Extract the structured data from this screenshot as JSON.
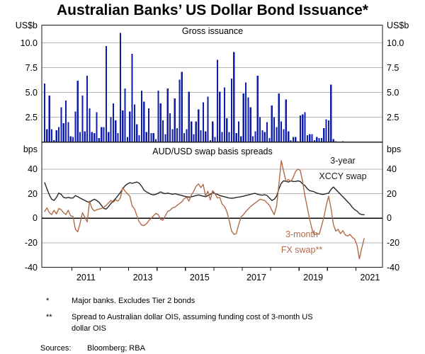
{
  "title": "Australian Banks’ US Dollar Bond Issuance*",
  "panels": {
    "top": {
      "label": "Gross issuance",
      "unit": "US$b",
      "yticks": [
        "10.0",
        "7.5",
        "5.0",
        "2.5"
      ]
    },
    "bottom": {
      "label": "AUD/USD swap basis spreads",
      "unit": "bps",
      "yticks": [
        "40",
        "20",
        "0",
        "-20",
        "-40"
      ],
      "series_labels": {
        "xccy": [
          "3-year",
          "XCCY swap"
        ],
        "fx": [
          "3-month",
          "FX swap**"
        ]
      }
    }
  },
  "x_axis": {
    "years": [
      "2011",
      "2013",
      "2015",
      "2017",
      "2019",
      "2021"
    ]
  },
  "footnotes": [
    {
      "symbol": "*",
      "text": "Major banks. Excludes Tier 2 bonds"
    },
    {
      "symbol": "**",
      "text": "Spread to Australian dollar OIS, assuming funding cost of 3-month US dollar OIS"
    }
  ],
  "sources": {
    "label": "Sources:",
    "value": "Bloomberg; RBA"
  },
  "colors": {
    "bar": "#0f1ea8",
    "xccy": "#262626",
    "fx": "#b26b48",
    "grid": "#b5b5b5",
    "axis": "#1a1a1a"
  },
  "chart_data": [
    {
      "type": "bar",
      "title": "Gross issuance",
      "ylabel": "US$b",
      "ylim": [
        0,
        11.8
      ],
      "yticks": [
        2.5,
        5.0,
        7.5,
        10.0
      ],
      "x_start": "2010-01",
      "frequency": "monthly",
      "values": [
        5.9,
        1.3,
        4.7,
        1.3,
        0.2,
        1.2,
        1.5,
        3.5,
        1.9,
        4.2,
        2.0,
        0.6,
        0.5,
        3.1,
        6.2,
        1.0,
        4.7,
        1.1,
        6.7,
        3.4,
        1.0,
        0.9,
        3.0,
        0.4,
        1.5,
        1.5,
        9.7,
        1.0,
        2.5,
        3.9,
        2.2,
        0.9,
        11.0,
        3.2,
        5.4,
        0.5,
        3.1,
        8.9,
        3.8,
        1.8,
        0.7,
        5.2,
        4.1,
        1.0,
        3.4,
        0.9,
        0.9,
        0.3,
        5.2,
        3.9,
        2.2,
        0.8,
        5.4,
        2.9,
        1.3,
        4.4,
        1.4,
        6.3,
        7.1,
        0.9,
        1.3,
        5.1,
        2.1,
        0.8,
        2.1,
        3.3,
        1.2,
        4.0,
        1.1,
        4.6,
        0.2,
        2.1,
        0.5,
        8.3,
        5.1,
        1.0,
        5.5,
        2.4,
        1.0,
        6.4,
        9.1,
        0.9,
        2.1,
        0.6,
        4.9,
        6.0,
        4.5,
        3.5,
        0.6,
        1.1,
        6.7,
        2.5,
        1.2,
        1.0,
        2.0,
        0.4,
        3.7,
        2.5,
        1.5,
        4.9,
        2.1,
        1.3,
        4.3,
        1.1,
        0.2,
        0.5,
        0.5,
        0.1,
        2.7,
        2.8,
        3.0,
        0.7,
        0.8,
        0.8,
        0.2,
        0.5,
        0.4,
        0.4,
        1.4,
        2.3,
        2.2,
        5.8,
        0.3,
        0.1,
        0,
        0,
        0.1,
        0,
        0,
        0,
        0,
        0,
        0,
        0,
        0
      ]
    },
    {
      "type": "line",
      "title": "AUD/USD swap basis spreads",
      "ylabel": "bps",
      "ylim": [
        -40,
        62
      ],
      "yticks": [
        -40,
        -20,
        0,
        20,
        40
      ],
      "x_start": "2010-01",
      "frequency": "monthly",
      "series": [
        {
          "name": "3-year XCCY swap",
          "color_key": "xccy",
          "values": [
            29,
            24,
            19,
            15.5,
            14.5,
            17,
            20.5,
            19.5,
            17,
            16.5,
            17,
            16.5,
            16.5,
            18.5,
            17.5,
            16.5,
            15.5,
            14.5,
            13.5,
            13,
            14.5,
            15.5,
            14.5,
            13,
            10.5,
            8,
            7.5,
            9.5,
            12,
            14,
            16,
            18.5,
            21,
            24,
            26.5,
            28,
            29,
            28.5,
            29,
            29.5,
            28.5,
            26,
            23,
            21.5,
            20.5,
            19.5,
            19,
            19.5,
            20.5,
            21.5,
            20.5,
            20,
            20.5,
            20,
            19.5,
            20,
            19.5,
            19,
            18.5,
            18,
            17.5,
            17.2,
            17.5,
            18,
            18.5,
            19,
            18.5,
            18,
            17.5,
            18.5,
            19.5,
            21,
            20,
            19.5,
            18.5,
            18,
            17.5,
            17,
            16.5,
            16.3,
            16.5,
            17,
            17.3,
            17.6,
            18,
            18.5,
            19,
            19.5,
            20,
            20.3,
            19.5,
            19,
            18.8,
            19.2,
            18.5,
            16.5,
            14.5,
            15.5,
            18,
            24,
            28.5,
            30.5,
            30,
            29.5,
            30.5,
            30,
            30,
            30.5,
            30,
            28,
            26.5,
            24,
            22.5,
            22,
            21.5,
            20.5,
            20,
            19.5,
            19.5,
            20,
            20.5,
            23.5,
            25.5,
            23.5,
            21.5,
            19.5,
            17.5,
            15.5,
            13.5,
            11.5,
            9,
            7,
            5.8,
            3.8,
            3,
            2.9
          ]
        },
        {
          "name": "3-month FX swap",
          "color_key": "fx",
          "values": [
            5.5,
            8.5,
            4.5,
            3,
            6.5,
            3.5,
            8,
            7,
            4.5,
            3,
            6.5,
            2,
            1.5,
            -9,
            -11,
            -4,
            4.5,
            1,
            -3,
            14,
            8,
            6,
            7,
            7.5,
            8,
            9,
            10.5,
            12.5,
            14.5,
            13,
            15,
            14,
            16.5,
            25,
            22,
            20,
            18,
            10,
            7.5,
            2,
            -3,
            -5.5,
            -6,
            -4.5,
            -2,
            -0.2,
            2,
            4,
            3,
            -1,
            -1.5,
            2,
            5.5,
            6.5,
            8.5,
            9,
            10.5,
            12,
            13.5,
            16,
            17,
            14,
            19,
            22,
            26,
            28,
            25,
            27.5,
            18,
            22,
            15,
            22.5,
            20,
            16.5,
            17,
            11.5,
            9.5,
            5.5,
            -2,
            -10.5,
            -13,
            -12.5,
            -5,
            1,
            3,
            5.5,
            7.5,
            9.5,
            11,
            12.5,
            14,
            15.5,
            15,
            14.5,
            12.5,
            10.5,
            6.5,
            3,
            10,
            28,
            47,
            38,
            30,
            31.5,
            30,
            33,
            38,
            40,
            39,
            30,
            18,
            8.5,
            -1,
            -9,
            -13.5,
            -12.5,
            -13,
            -6.5,
            1,
            10.5,
            18,
            8,
            -5,
            -10.5,
            -9,
            -12.5,
            -10,
            -13.5,
            -14.5,
            -13,
            -15.5,
            -17,
            -22,
            -33,
            -24,
            -16.5
          ]
        }
      ]
    }
  ]
}
